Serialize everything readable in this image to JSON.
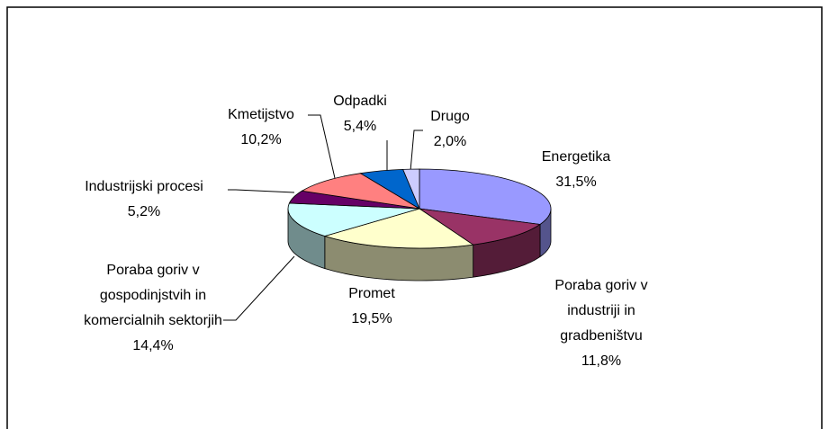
{
  "chart_data": {
    "type": "pie",
    "categories": [
      "Energetika",
      "Poraba goriv v industriji in gradbeništvu",
      "Promet",
      "Poraba goriv v gospodinjstvih in komercialnih sektorjih",
      "Industrijski procesi",
      "Kmetijstvo",
      "Odpadki",
      "Drugo"
    ],
    "values": [
      31.5,
      11.8,
      19.5,
      14.4,
      5.2,
      10.2,
      5.4,
      2.0
    ],
    "value_labels": [
      "31,5%",
      "11,8%",
      "19,5%",
      "14,4%",
      "5,2%",
      "10,2%",
      "5,4%",
      "2,0%"
    ],
    "colors": [
      "#9999ff",
      "#993366",
      "#ffffcc",
      "#ccffff",
      "#660066",
      "#ff8080",
      "#0066cc",
      "#ccccff"
    ]
  }
}
